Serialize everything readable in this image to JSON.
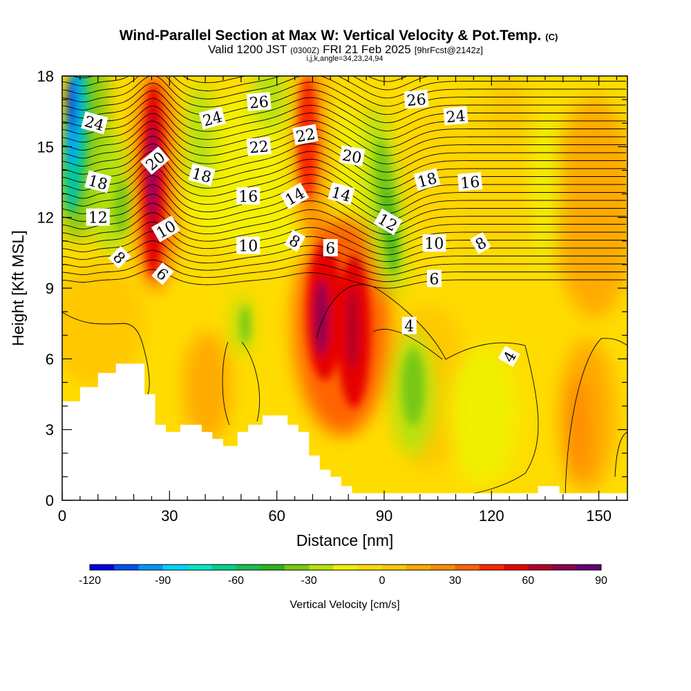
{
  "chart_data": {
    "type": "heatmap",
    "title_main": "Wind-Parallel Section at Max W: Vertical Velocity & Pot.Temp.",
    "title_mark": "(C)",
    "subtitle_a": "Valid 1200 JST",
    "subtitle_b": "(0300Z)",
    "subtitle_c": "FRI 21 Feb 2025",
    "subtitle_d": "[9hrFcst@2142z]",
    "subtitle_e": "i,j,k,angle=34,23,24,94",
    "xlabel": "Distance [nm]",
    "ylabel": "Height [Kft MSL]",
    "xlim": [
      0,
      158
    ],
    "ylim": [
      0,
      18
    ],
    "x_ticks": [
      "0",
      "30",
      "60",
      "90",
      "120",
      "150"
    ],
    "y_ticks": [
      "0",
      "3",
      "6",
      "9",
      "12",
      "15",
      "18"
    ],
    "colorbar": {
      "label": "Vertical Velocity [cm/s]",
      "range": [
        -120,
        90
      ],
      "tick_labels": [
        "-120",
        "-90",
        "-60",
        "-30",
        "0",
        "30",
        "60",
        "90"
      ],
      "colors": [
        "#0000e6",
        "#0050f0",
        "#0096ff",
        "#00d2ff",
        "#00e6c8",
        "#00d28c",
        "#18be50",
        "#2db41e",
        "#78c814",
        "#b4e10a",
        "#f0f000",
        "#ffdc00",
        "#ffc800",
        "#ffaa00",
        "#ff8c00",
        "#ff6400",
        "#ff2800",
        "#e60000",
        "#b40028",
        "#8c0050",
        "#640078"
      ]
    },
    "terrain_kft": [
      [
        0,
        4.2
      ],
      [
        5,
        4.2
      ],
      [
        5,
        4.8
      ],
      [
        10,
        4.8
      ],
      [
        10,
        5.4
      ],
      [
        15,
        5.4
      ],
      [
        15,
        5.8
      ],
      [
        23,
        5.8
      ],
      [
        23,
        4.5
      ],
      [
        26,
        4.5
      ],
      [
        26,
        3.2
      ],
      [
        29,
        3.2
      ],
      [
        29,
        2.9
      ],
      [
        33,
        2.9
      ],
      [
        33,
        3.2
      ],
      [
        39,
        3.2
      ],
      [
        39,
        2.9
      ],
      [
        42,
        2.9
      ],
      [
        42,
        2.6
      ],
      [
        45,
        2.6
      ],
      [
        45,
        2.3
      ],
      [
        49,
        2.3
      ],
      [
        49,
        2.9
      ],
      [
        52,
        2.9
      ],
      [
        52,
        3.2
      ],
      [
        56,
        3.2
      ],
      [
        56,
        3.6
      ],
      [
        63,
        3.6
      ],
      [
        63,
        3.2
      ],
      [
        66,
        3.2
      ],
      [
        66,
        2.9
      ],
      [
        69,
        2.9
      ],
      [
        69,
        1.9
      ],
      [
        72,
        1.9
      ],
      [
        72,
        1.3
      ],
      [
        75,
        1.3
      ],
      [
        75,
        1.0
      ],
      [
        78,
        1.0
      ],
      [
        78,
        0.6
      ],
      [
        81,
        0.6
      ],
      [
        81,
        0.3
      ],
      [
        133,
        0.3
      ],
      [
        133,
        0.6
      ],
      [
        139,
        0.6
      ],
      [
        139,
        0.3
      ],
      [
        158,
        0.3
      ]
    ],
    "contour_labels": [
      {
        "text": "24",
        "x": 9,
        "y": 16.0,
        "rot": 15
      },
      {
        "text": "18",
        "x": 10,
        "y": 13.5,
        "rot": 15
      },
      {
        "text": "12",
        "x": 10,
        "y": 12.0,
        "rot": 0
      },
      {
        "text": "8",
        "x": 16,
        "y": 10.3,
        "rot": 45
      },
      {
        "text": "20",
        "x": 26,
        "y": 14.4,
        "rot": -40
      },
      {
        "text": "10",
        "x": 29,
        "y": 11.5,
        "rot": -30
      },
      {
        "text": "6",
        "x": 28,
        "y": 9.6,
        "rot": 40
      },
      {
        "text": "24",
        "x": 42,
        "y": 16.2,
        "rot": -15
      },
      {
        "text": "18",
        "x": 39,
        "y": 13.8,
        "rot": 15
      },
      {
        "text": "26",
        "x": 55,
        "y": 16.9,
        "rot": -5
      },
      {
        "text": "22",
        "x": 55,
        "y": 15.0,
        "rot": -5
      },
      {
        "text": "16",
        "x": 52,
        "y": 12.9,
        "rot": 0
      },
      {
        "text": "10",
        "x": 52,
        "y": 10.8,
        "rot": 0
      },
      {
        "text": "22",
        "x": 68,
        "y": 15.5,
        "rot": -10
      },
      {
        "text": "14",
        "x": 65,
        "y": 12.9,
        "rot": -30
      },
      {
        "text": "8",
        "x": 65,
        "y": 11.0,
        "rot": 30
      },
      {
        "text": "6",
        "x": 75,
        "y": 10.7,
        "rot": 0
      },
      {
        "text": "14",
        "x": 78,
        "y": 13.0,
        "rot": 15
      },
      {
        "text": "20",
        "x": 81,
        "y": 14.6,
        "rot": 10
      },
      {
        "text": "12",
        "x": 91,
        "y": 11.8,
        "rot": 30
      },
      {
        "text": "26",
        "x": 99,
        "y": 17.0,
        "rot": -5
      },
      {
        "text": "18",
        "x": 102,
        "y": 13.6,
        "rot": -15
      },
      {
        "text": "10",
        "x": 104,
        "y": 10.9,
        "rot": 0
      },
      {
        "text": "6",
        "x": 104,
        "y": 9.4,
        "rot": 0
      },
      {
        "text": "4",
        "x": 97,
        "y": 7.4,
        "rot": 0
      },
      {
        "text": "24",
        "x": 110,
        "y": 16.3,
        "rot": -5
      },
      {
        "text": "16",
        "x": 114,
        "y": 13.5,
        "rot": -5
      },
      {
        "text": "8",
        "x": 117,
        "y": 10.9,
        "rot": -30
      },
      {
        "text": "4",
        "x": 125,
        "y": 6.1,
        "rot": -60
      }
    ]
  }
}
